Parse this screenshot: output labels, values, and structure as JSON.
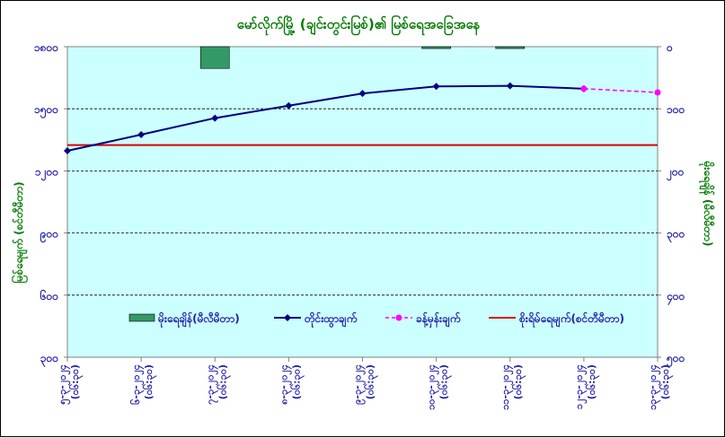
{
  "chart_data": {
    "type": "line",
    "title": "မော်လိုက်မြို့ (ချင်းတွင်းမြစ်)၏ မြစ်ရေအခြေအနေ",
    "ylabel_left": "မြစ်ရေမျက် (စင်တီမီတာ)",
    "ylabel_right": "မိုးရေချိန် (မီလီမီတာ)",
    "x": [
      "၅-၃-၂၀၂၄ (၀၆:၃၀)",
      "၆-၃-၂၀၂၄ (၀၆:၃၀)",
      "၇-၃-၂၀၂၄ (၀၆:၃၀)",
      "၈-၃-၂၀၂၄ (၀၆:၃၀)",
      "၉-၃-၂၀၂၄ (၀၆:၃၀)",
      "၁၀-၃-၂၀၂၄ (၀၆:၃၀)",
      "၁၁-၃-၂၀၂၄ (၀၆:၃၀)",
      "၁၂-၃-၂၀၂၄ (၀၆:၃၀)",
      "၁၃-၃-၂၀၂၄ (၀၆:၃၀)"
    ],
    "y_left_range": [
      300,
      1800
    ],
    "y_left_ticks": [
      300,
      600,
      900,
      1200,
      1500,
      1800
    ],
    "y_left_tick_labels": [
      "၃၀၀",
      "၆၀၀",
      "၉၀၀",
      "၁၂၀၀",
      "၁၅၀၀",
      "၁၈၀၀"
    ],
    "y_right_range": [
      0,
      500
    ],
    "y_right_ticks": [
      0,
      100,
      200,
      300,
      400,
      500
    ],
    "y_right_tick_labels": [
      "၀",
      "၁၀၀",
      "၂၀၀",
      "၃၀၀",
      "၄၀၀",
      "၅၀၀"
    ],
    "y_right_inverted": true,
    "series": [
      {
        "name": "မိုးရေချိန်(မီလီမီတာ)",
        "kind": "bar",
        "axis": "right",
        "color": "#339966",
        "values": [
          0,
          0,
          35,
          0,
          0,
          3,
          3,
          0,
          0
        ]
      },
      {
        "name": "တိုင်းထွာချက်",
        "kind": "line",
        "axis": "left",
        "color": "#000080",
        "values": [
          1297,
          1375,
          1455,
          1515,
          1574,
          1608,
          1611,
          1597,
          null
        ]
      },
      {
        "name": "ခန့်မှန်းချက်",
        "kind": "line-dashed",
        "axis": "left",
        "color": "#ff00ff",
        "values": [
          null,
          null,
          null,
          null,
          null,
          null,
          null,
          1597,
          1579
        ]
      },
      {
        "name": "စိုးရိမ်ရေမျက်(စင်တီမီတာ)",
        "kind": "hline",
        "axis": "left",
        "color": "#dd0000",
        "value": 1325
      }
    ],
    "grid": "horizontal-dashed",
    "legend_position": "center"
  }
}
